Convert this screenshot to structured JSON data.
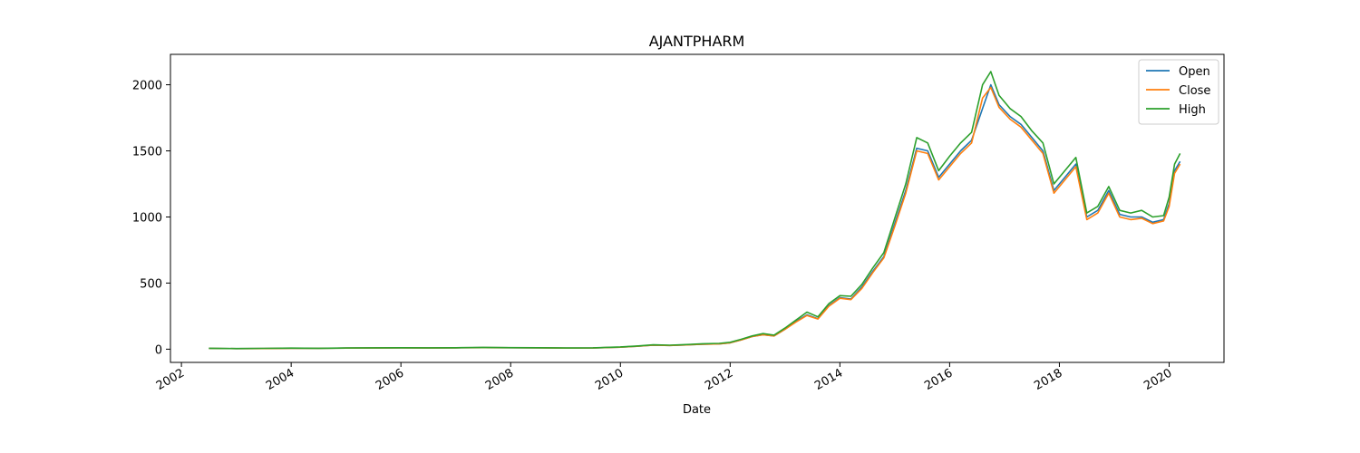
{
  "chart_data": {
    "type": "line",
    "title": "AJANTPHARM",
    "xlabel": "Date",
    "ylabel": "",
    "xlim": [
      2001.8,
      2021.0
    ],
    "ylim": [
      -100,
      2230
    ],
    "x_ticks": [
      2002,
      2004,
      2006,
      2008,
      2010,
      2012,
      2014,
      2016,
      2018,
      2020
    ],
    "x_tick_labels": [
      "2002",
      "2004",
      "2006",
      "2008",
      "2010",
      "2012",
      "2014",
      "2016",
      "2018",
      "2020"
    ],
    "y_ticks": [
      0,
      500,
      1000,
      1500,
      2000
    ],
    "y_tick_labels": [
      "0",
      "500",
      "1000",
      "1500",
      "2000"
    ],
    "grid": false,
    "legend_position": "top-right",
    "x": [
      2002.5,
      2003.0,
      2003.5,
      2004.0,
      2004.5,
      2005.0,
      2005.5,
      2006.0,
      2006.5,
      2007.0,
      2007.5,
      2008.0,
      2008.5,
      2009.0,
      2009.5,
      2010.0,
      2010.3,
      2010.6,
      2010.9,
      2011.2,
      2011.5,
      2011.8,
      2012.0,
      2012.2,
      2012.4,
      2012.6,
      2012.8,
      2013.0,
      2013.2,
      2013.4,
      2013.6,
      2013.8,
      2014.0,
      2014.2,
      2014.4,
      2014.6,
      2014.8,
      2015.0,
      2015.2,
      2015.4,
      2015.6,
      2015.8,
      2016.0,
      2016.2,
      2016.4,
      2016.6,
      2016.75,
      2016.9,
      2017.1,
      2017.3,
      2017.5,
      2017.7,
      2017.9,
      2018.1,
      2018.3,
      2018.5,
      2018.7,
      2018.9,
      2019.1,
      2019.3,
      2019.5,
      2019.7,
      2019.9,
      2020.0,
      2020.1,
      2020.2
    ],
    "series": [
      {
        "name": "Open",
        "color": "#1f77b4",
        "values": [
          6,
          4,
          5,
          7,
          6,
          8,
          9,
          10,
          9,
          10,
          12,
          11,
          10,
          8,
          9,
          15,
          22,
          30,
          28,
          32,
          38,
          40,
          48,
          70,
          95,
          110,
          100,
          150,
          210,
          260,
          230,
          330,
          390,
          380,
          470,
          590,
          700,
          950,
          1200,
          1520,
          1500,
          1300,
          1400,
          1500,
          1580,
          1820,
          2000,
          1850,
          1760,
          1700,
          1600,
          1500,
          1200,
          1300,
          1400,
          1000,
          1050,
          1200,
          1020,
          1000,
          1000,
          960,
          980,
          1100,
          1350,
          1420
        ]
      },
      {
        "name": "Close",
        "color": "#ff7f0e",
        "values": [
          6,
          4,
          5,
          7,
          6,
          8,
          9,
          10,
          9,
          10,
          12,
          11,
          10,
          8,
          9,
          15,
          22,
          30,
          28,
          32,
          38,
          40,
          48,
          70,
          95,
          110,
          100,
          150,
          205,
          255,
          228,
          325,
          385,
          375,
          460,
          580,
          690,
          930,
          1180,
          1500,
          1480,
          1280,
          1380,
          1480,
          1560,
          1900,
          1980,
          1830,
          1740,
          1680,
          1580,
          1480,
          1180,
          1280,
          1380,
          980,
          1030,
          1180,
          1000,
          980,
          990,
          950,
          970,
          1080,
          1330,
          1400
        ]
      },
      {
        "name": "High",
        "color": "#2ca02c",
        "values": [
          7,
          5,
          6,
          8,
          7,
          9,
          10,
          11,
          10,
          11,
          14,
          12,
          11,
          9,
          10,
          17,
          24,
          33,
          30,
          35,
          41,
          44,
          52,
          75,
          100,
          118,
          106,
          160,
          220,
          280,
          245,
          345,
          405,
          400,
          490,
          615,
          730,
          990,
          1250,
          1600,
          1560,
          1350,
          1460,
          1560,
          1640,
          2000,
          2100,
          1920,
          1820,
          1760,
          1650,
          1560,
          1250,
          1350,
          1450,
          1030,
          1080,
          1230,
          1050,
          1030,
          1050,
          1000,
          1010,
          1150,
          1400,
          1480
        ]
      }
    ]
  }
}
